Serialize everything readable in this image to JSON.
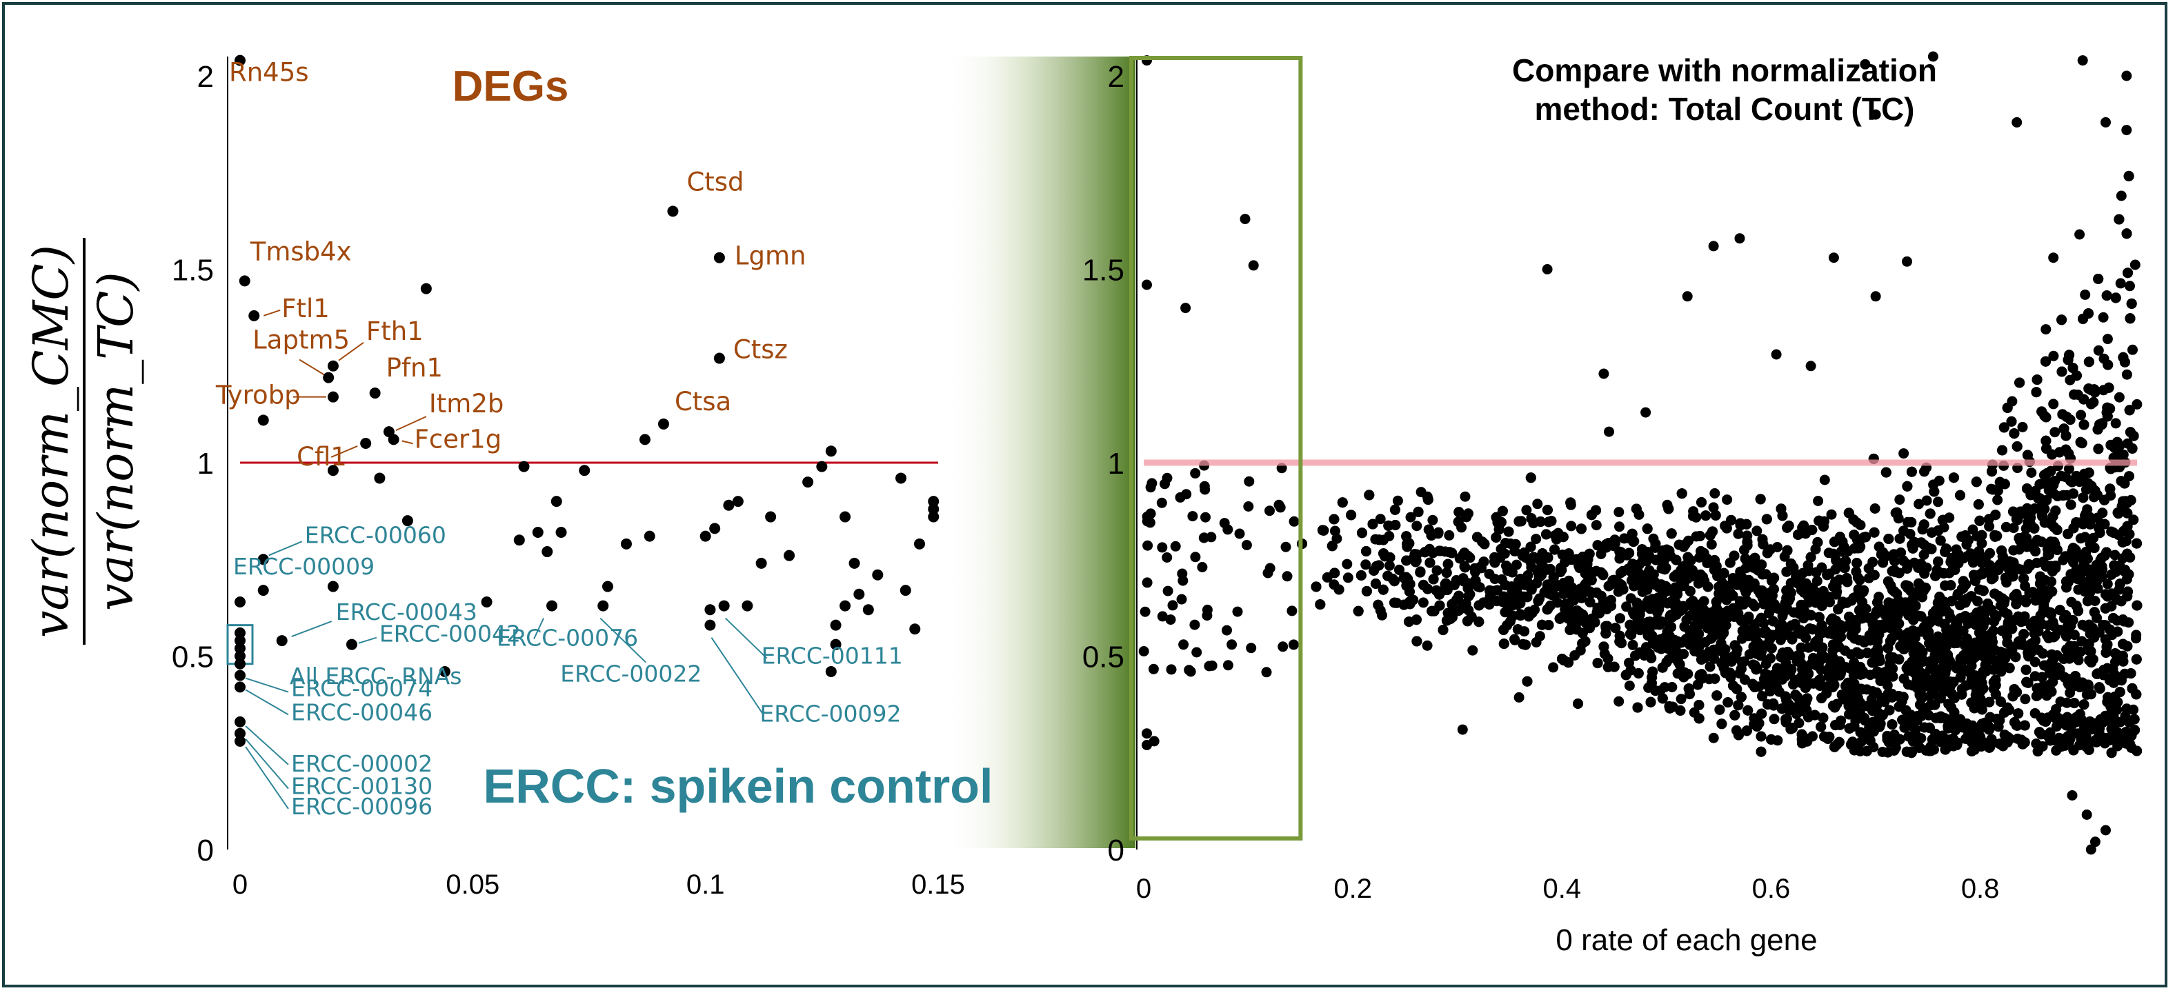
{
  "colors": {
    "deg": "#a1490d",
    "ercc": "#2e8597",
    "threshold": "#c0001a",
    "frame": "#173d40",
    "zoom_box": "#7a9a3a",
    "points": "#000000"
  },
  "chart_data": [
    {
      "type": "scatter",
      "title": "DEGs",
      "subtitle": "ERCC: spikein control",
      "ylabel_numerator": "var(norm_CMC)",
      "ylabel_denominator": "var(norm_TC)",
      "xlim": [
        0,
        0.15
      ],
      "ylim": [
        0,
        2.05
      ],
      "xticks": [
        "0",
        "0.05",
        "0.1",
        "0.15"
      ],
      "yticks": [
        "0",
        "0.5",
        "1",
        "1.5",
        "2"
      ],
      "threshold": 1,
      "ercc_box_label": "All ERCC- RNAs",
      "labeled_points": [
        {
          "label": "Rn45s",
          "x": 0.0,
          "y": 2.04,
          "group": "deg"
        },
        {
          "label": "Tmsb4x",
          "x": 0.001,
          "y": 1.47,
          "group": "deg"
        },
        {
          "label": "Ftl1",
          "x": 0.003,
          "y": 1.38,
          "group": "deg"
        },
        {
          "label": "Laptm5",
          "x": 0.019,
          "y": 1.22,
          "group": "deg"
        },
        {
          "label": "Fth1",
          "x": 0.02,
          "y": 1.25,
          "group": "deg"
        },
        {
          "label": "Pfn1",
          "x": 0.029,
          "y": 1.18,
          "group": "deg"
        },
        {
          "label": "Tyrobp",
          "x": 0.02,
          "y": 1.17,
          "group": "deg"
        },
        {
          "label": "Itm2b",
          "x": 0.032,
          "y": 1.08,
          "group": "deg"
        },
        {
          "label": "Fcer1g",
          "x": 0.033,
          "y": 1.06,
          "group": "deg"
        },
        {
          "label": "Cfl1",
          "x": 0.027,
          "y": 1.05,
          "group": "deg"
        },
        {
          "label": "Ctsd",
          "x": 0.093,
          "y": 1.65,
          "group": "deg"
        },
        {
          "label": "Lgmn",
          "x": 0.103,
          "y": 1.53,
          "group": "deg"
        },
        {
          "label": "Ctsz",
          "x": 0.103,
          "y": 1.27,
          "group": "deg"
        },
        {
          "label": "Ctsa",
          "x": 0.091,
          "y": 1.1,
          "group": "deg"
        },
        {
          "label": "ERCC-00009",
          "x": 0.0,
          "y": 0.64,
          "group": "ercc"
        },
        {
          "label": "ERCC-00060",
          "x": 0.005,
          "y": 0.75,
          "group": "ercc"
        },
        {
          "label": "ERCC-00043",
          "x": 0.009,
          "y": 0.54,
          "group": "ercc"
        },
        {
          "label": "ERCC-00042",
          "x": 0.024,
          "y": 0.53,
          "group": "ercc"
        },
        {
          "label": "ERCC-00076",
          "x": 0.067,
          "y": 0.63,
          "group": "ercc"
        },
        {
          "label": "ERCC-00022",
          "x": 0.078,
          "y": 0.63,
          "group": "ercc"
        },
        {
          "label": "ERCC-00111",
          "x": 0.104,
          "y": 0.63,
          "group": "ercc"
        },
        {
          "label": "ERCC-00092",
          "x": 0.101,
          "y": 0.58,
          "group": "ercc"
        },
        {
          "label": "ERCC-00074",
          "x": 0.0,
          "y": 0.45,
          "group": "ercc"
        },
        {
          "label": "ERCC-00046",
          "x": 0.0,
          "y": 0.42,
          "group": "ercc"
        },
        {
          "label": "ERCC-00002",
          "x": 0.0,
          "y": 0.33,
          "group": "ercc"
        },
        {
          "label": "ERCC-00130",
          "x": 0.0,
          "y": 0.3,
          "group": "ercc"
        },
        {
          "label": "ERCC-00096",
          "x": 0.0,
          "y": 0.28,
          "group": "ercc"
        }
      ],
      "other_points": [
        [
          0.0,
          0.56
        ],
        [
          0.0,
          0.54
        ],
        [
          0.0,
          0.52
        ],
        [
          0.0,
          0.5
        ],
        [
          0.0,
          0.48
        ],
        [
          0.005,
          0.67
        ],
        [
          0.005,
          1.11
        ],
        [
          0.02,
          0.98
        ],
        [
          0.02,
          0.68
        ],
        [
          0.04,
          1.45
        ],
        [
          0.036,
          0.85
        ],
        [
          0.03,
          0.96
        ],
        [
          0.044,
          0.46
        ],
        [
          0.053,
          0.64
        ],
        [
          0.061,
          0.99
        ],
        [
          0.06,
          0.8
        ],
        [
          0.064,
          0.82
        ],
        [
          0.066,
          0.77
        ],
        [
          0.068,
          0.9
        ],
        [
          0.069,
          0.82
        ],
        [
          0.074,
          0.98
        ],
        [
          0.083,
          0.79
        ],
        [
          0.079,
          0.68
        ],
        [
          0.087,
          1.06
        ],
        [
          0.088,
          0.81
        ],
        [
          0.1,
          0.81
        ],
        [
          0.102,
          0.83
        ],
        [
          0.101,
          0.62
        ],
        [
          0.105,
          0.89
        ],
        [
          0.107,
          0.9
        ],
        [
          0.109,
          0.63
        ],
        [
          0.112,
          0.74
        ],
        [
          0.114,
          0.86
        ],
        [
          0.118,
          0.76
        ],
        [
          0.122,
          0.95
        ],
        [
          0.125,
          0.99
        ],
        [
          0.127,
          1.03
        ],
        [
          0.127,
          0.46
        ],
        [
          0.128,
          0.58
        ],
        [
          0.128,
          0.53
        ],
        [
          0.13,
          0.86
        ],
        [
          0.13,
          0.63
        ],
        [
          0.132,
          0.74
        ],
        [
          0.133,
          0.66
        ],
        [
          0.135,
          0.62
        ],
        [
          0.137,
          0.71
        ],
        [
          0.142,
          0.96
        ],
        [
          0.143,
          0.67
        ],
        [
          0.145,
          0.57
        ],
        [
          0.146,
          0.79
        ],
        [
          0.149,
          0.86
        ],
        [
          0.149,
          0.88
        ],
        [
          0.149,
          0.9
        ]
      ]
    },
    {
      "type": "scatter",
      "title": "Compare with normalization method: Total Count (TC)",
      "xlabel": "0 rate of each gene",
      "xlim": [
        0,
        0.95
      ],
      "ylim": [
        0,
        2.05
      ],
      "xticks": [
        "0",
        "0.2",
        "0.4",
        "0.6",
        "0.8"
      ],
      "yticks": [
        "0",
        "0.5",
        "1",
        "1.5",
        "2"
      ],
      "threshold": 1,
      "zoom_region_x": [
        0,
        0.15
      ],
      "points_description_n": 6500,
      "notable_points": [
        [
          0.003,
          2.04
        ],
        [
          0.097,
          1.63
        ],
        [
          0.105,
          1.51
        ],
        [
          0.003,
          1.46
        ],
        [
          0.04,
          1.4
        ],
        [
          0.386,
          1.5
        ],
        [
          0.52,
          1.43
        ],
        [
          0.545,
          1.56
        ],
        [
          0.57,
          1.58
        ],
        [
          0.605,
          1.28
        ],
        [
          0.638,
          1.25
        ],
        [
          0.66,
          1.53
        ],
        [
          0.7,
          1.9
        ],
        [
          0.7,
          1.43
        ],
        [
          0.73,
          1.52
        ],
        [
          0.755,
          2.05
        ],
        [
          0.69,
          2.03
        ],
        [
          0.835,
          1.88
        ],
        [
          0.87,
          1.53
        ],
        [
          0.895,
          1.59
        ],
        [
          0.898,
          2.04
        ],
        [
          0.92,
          1.88
        ],
        [
          0.94,
          2.0
        ],
        [
          0.94,
          1.86
        ],
        [
          0.935,
          1.69
        ],
        [
          0.44,
          1.23
        ],
        [
          0.445,
          1.08
        ],
        [
          0.48,
          1.13
        ],
        [
          0.455,
          0.77
        ],
        [
          0.305,
          0.31
        ],
        [
          0.045,
          0.46
        ],
        [
          0.795,
          0.45
        ],
        [
          0.82,
          0.46
        ],
        [
          0.888,
          0.14
        ],
        [
          0.91,
          0.02
        ],
        [
          0.92,
          0.05
        ],
        [
          0.902,
          0.09
        ],
        [
          0.906,
          0.0
        ],
        [
          0.003,
          0.27
        ],
        [
          0.003,
          0.3
        ],
        [
          0.01,
          0.28
        ]
      ]
    }
  ]
}
